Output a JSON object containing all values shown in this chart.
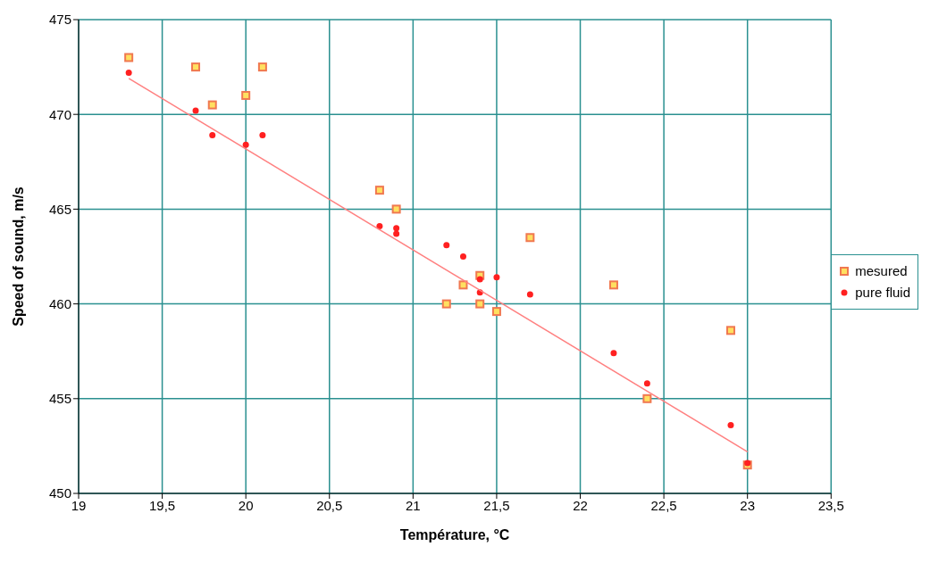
{
  "chart_data": {
    "type": "scatter",
    "xlabel": "Température, °C",
    "ylabel": "Speed of sound, m/s",
    "xlim": [
      19,
      23.5
    ],
    "xticks": [
      19,
      {
        "value": 19.5,
        "label": "19,5"
      },
      20,
      {
        "value": 20.5,
        "label": "20,5"
      },
      21,
      {
        "value": 21.5,
        "label": "21,5"
      },
      22,
      {
        "value": 22.5,
        "label": "22,5"
      },
      23,
      {
        "value": 23.5,
        "label": "23,5"
      }
    ],
    "ylim": [
      450,
      475
    ],
    "yticks": [
      450,
      455,
      460,
      465,
      470,
      475
    ],
    "grid": true,
    "legend": "right",
    "series": [
      {
        "name": "mesured",
        "color": "#f07850",
        "marker": "square",
        "x": [
          19.3,
          19.7,
          19.8,
          20,
          20.1,
          20.8,
          20.9,
          21.2,
          21.3,
          21.4,
          21.4,
          21.5,
          21.7,
          22.2,
          22.4,
          22.9,
          23
        ],
        "values": [
          473,
          472.5,
          470.5,
          471,
          472.5,
          466,
          465,
          460,
          461,
          461.5,
          460,
          459.6,
          463.5,
          461,
          455,
          458.6,
          451.5
        ]
      },
      {
        "name": "pure fluid",
        "color": "#ff2020",
        "marker": "circle",
        "x": [
          19.3,
          19.7,
          19.8,
          20,
          20.1,
          20.8,
          20.9,
          20.9,
          21.2,
          21.3,
          21.4,
          21.4,
          21.5,
          21.7,
          22.2,
          22.4,
          22.9,
          23
        ],
        "values": [
          472.2,
          470.2,
          468.9,
          468.4,
          468.9,
          464.1,
          464,
          463.7,
          463.1,
          462.5,
          461.3,
          460.6,
          461.4,
          460.5,
          457.4,
          455.8,
          453.6,
          451.6
        ]
      },
      {
        "type": "line",
        "color": "#ff8080",
        "marker": "none",
        "x": [
          19.3,
          23
        ],
        "values": [
          471.9,
          452.2
        ]
      }
    ]
  }
}
